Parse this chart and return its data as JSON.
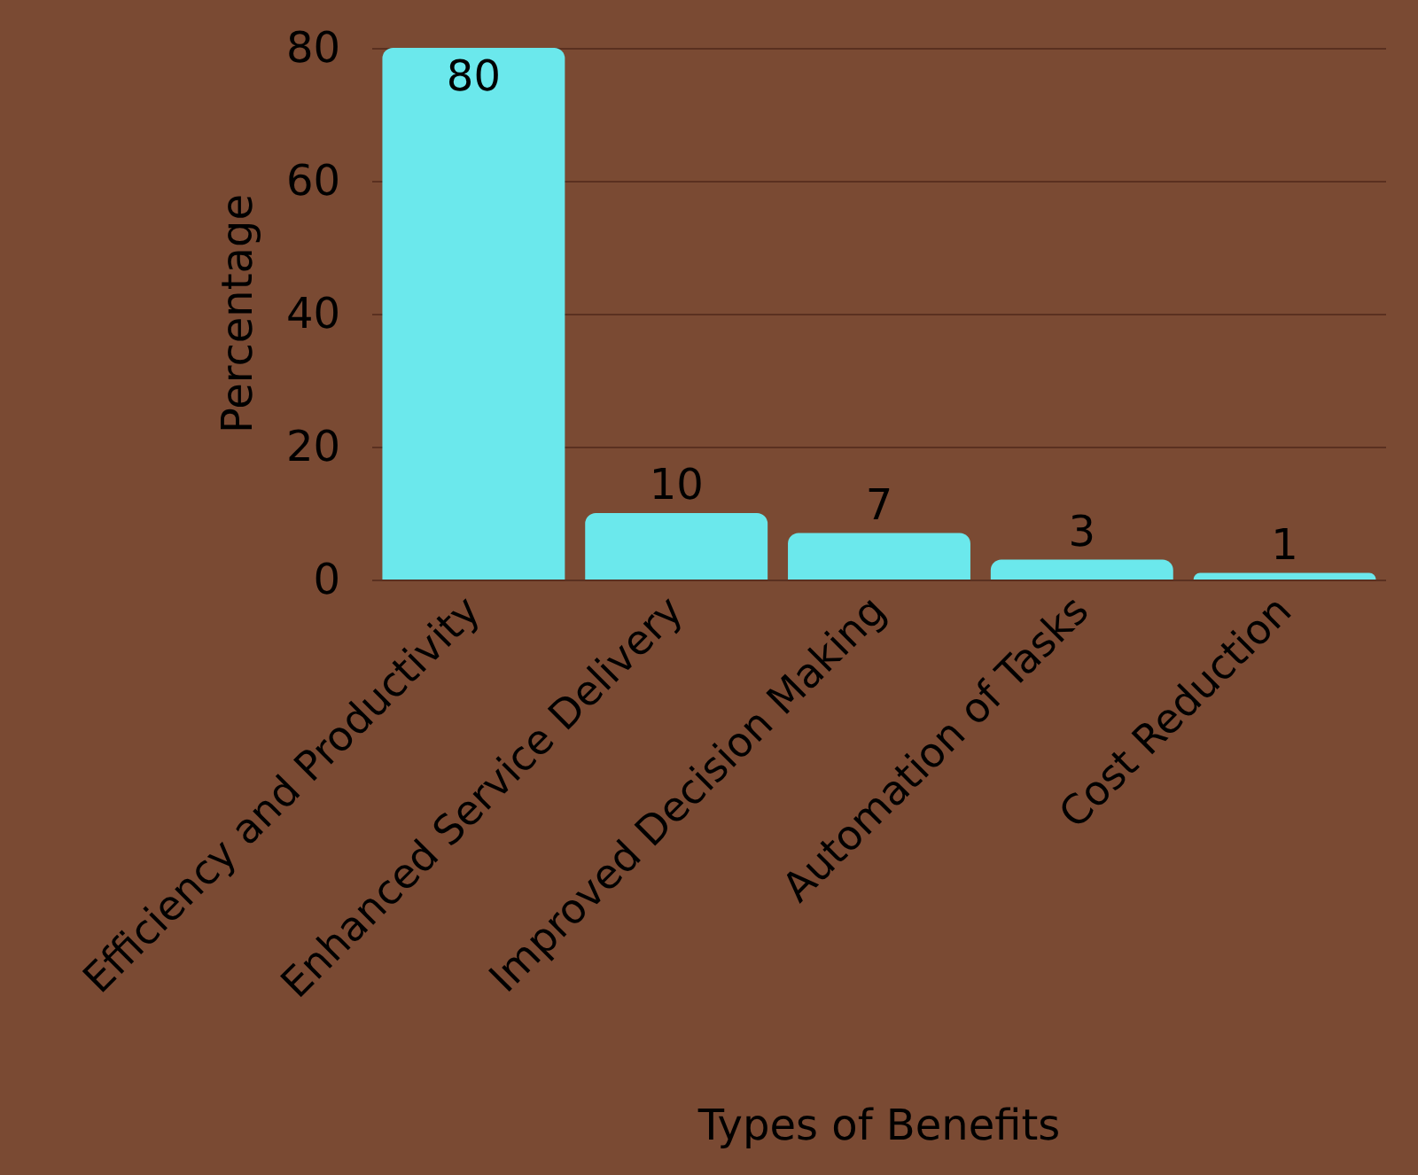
{
  "chart_data": {
    "type": "bar",
    "xlabel": "Types of Benefits",
    "ylabel": "Percentage",
    "categories": [
      "Efficiency and Productivity",
      "Enhanced Service Delivery",
      "Improved Decision Making",
      "Automation of Tasks",
      "Cost Reduction"
    ],
    "values": [
      80,
      10,
      7,
      3,
      1
    ],
    "color": "#6be8ec",
    "data_labels": true,
    "ylim": [
      0,
      80
    ],
    "yticks": [
      0,
      20,
      40,
      60,
      80
    ],
    "grid": "y"
  }
}
